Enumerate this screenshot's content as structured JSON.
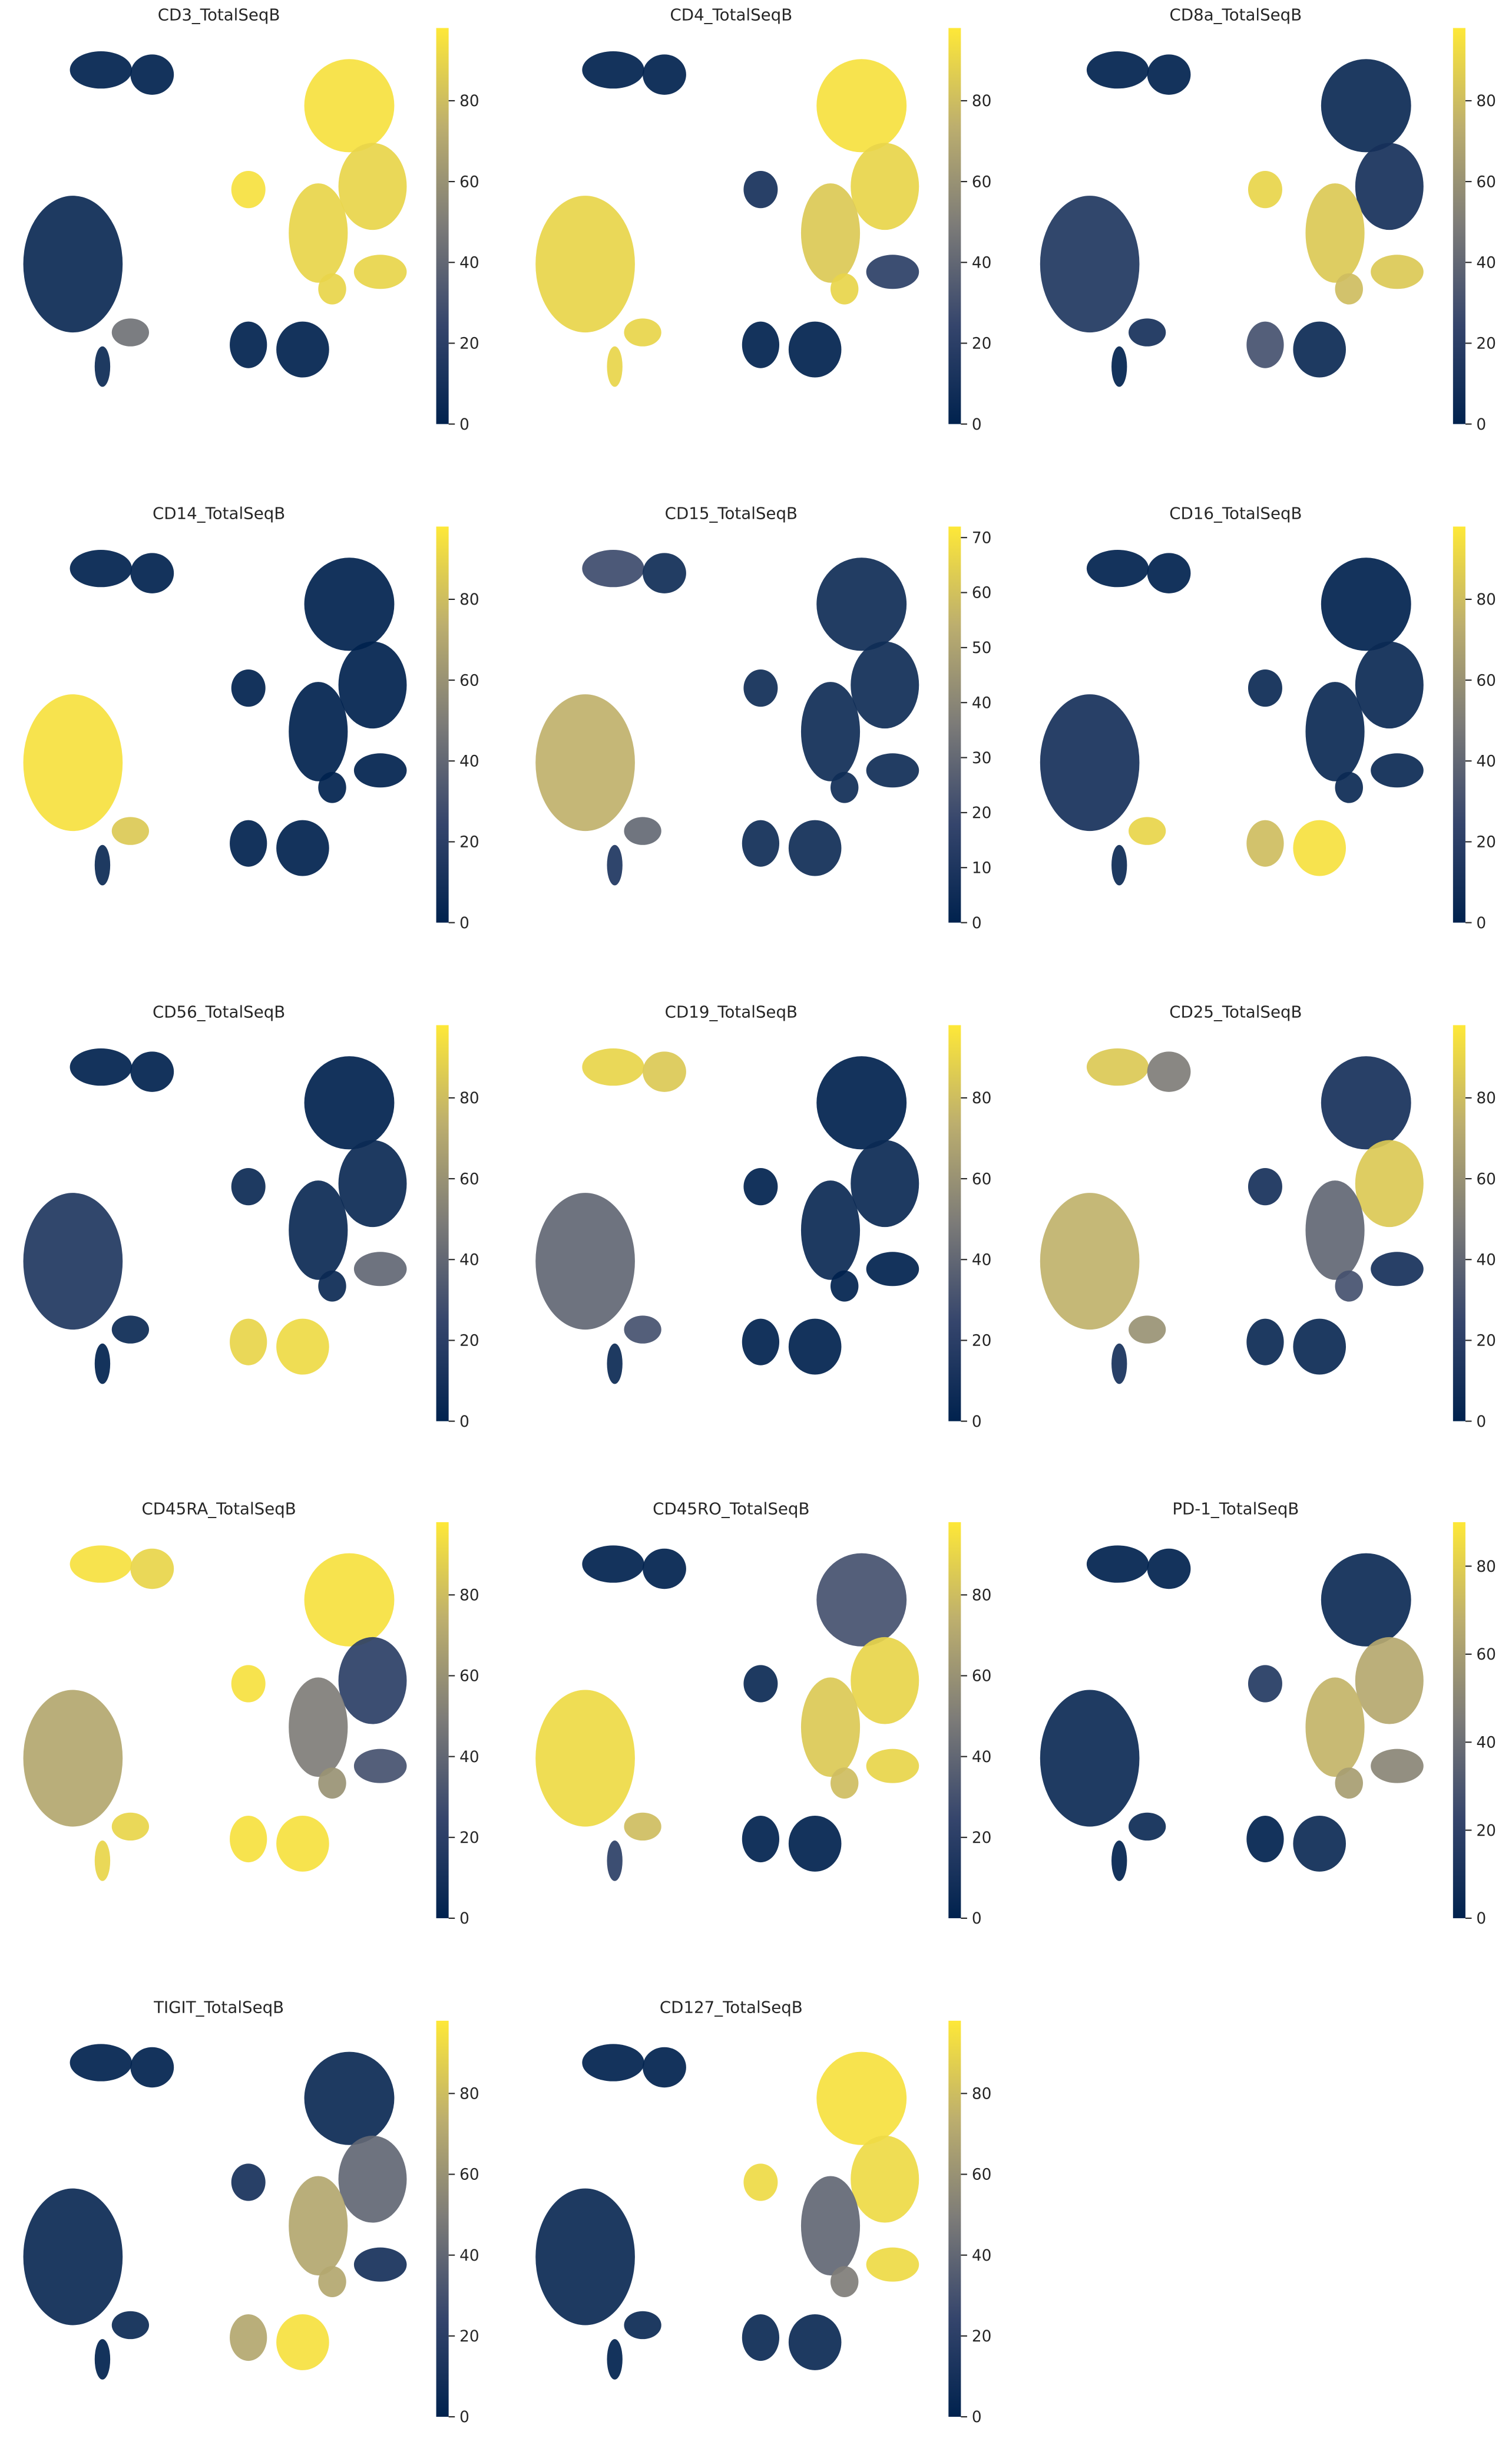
{
  "chart_data": [
    {
      "type": "scatter",
      "title": "CD3_TotalSeqB",
      "values": [
        0,
        0,
        5,
        45,
        5,
        0,
        0,
        95,
        90,
        90,
        95,
        90,
        90
      ],
      "colormap": "cividis",
      "clim": [
        0,
        98
      ],
      "cticks": [
        0,
        20,
        40,
        60,
        80
      ]
    },
    {
      "type": "scatter",
      "title": "CD4_TotalSeqB",
      "values": [
        0,
        0,
        90,
        90,
        90,
        0,
        0,
        95,
        90,
        85,
        10,
        20,
        90
      ],
      "colormap": "cividis",
      "clim": [
        0,
        98
      ],
      "cticks": [
        0,
        20,
        40,
        60,
        80
      ]
    },
    {
      "type": "scatter",
      "title": "CD8a_TotalSeqB",
      "values": [
        0,
        0,
        15,
        10,
        0,
        30,
        5,
        5,
        10,
        85,
        90,
        85,
        80
      ],
      "colormap": "cividis",
      "clim": [
        0,
        98
      ],
      "cticks": [
        0,
        20,
        40,
        60,
        80
      ]
    },
    {
      "type": "scatter",
      "title": "CD14_TotalSeqB",
      "values": [
        0,
        0,
        95,
        85,
        5,
        0,
        0,
        0,
        0,
        0,
        0,
        0,
        0
      ],
      "colormap": "cividis",
      "clim": [
        0,
        98
      ],
      "cticks": [
        0,
        20,
        40,
        60,
        80
      ]
    },
    {
      "type": "scatter",
      "title": "CD15_TotalSeqB",
      "values": [
        20,
        5,
        55,
        30,
        10,
        5,
        5,
        5,
        5,
        5,
        5,
        5,
        5
      ],
      "colormap": "cividis",
      "clim": [
        0,
        72
      ],
      "cticks": [
        0,
        10,
        20,
        30,
        40,
        50,
        60,
        70
      ]
    },
    {
      "type": "scatter",
      "title": "CD16_TotalSeqB",
      "values": [
        0,
        0,
        10,
        90,
        5,
        80,
        95,
        0,
        5,
        5,
        5,
        5,
        5
      ],
      "colormap": "cividis",
      "clim": [
        0,
        98
      ],
      "cticks": [
        0,
        20,
        40,
        60,
        80
      ]
    },
    {
      "type": "scatter",
      "title": "CD56_TotalSeqB",
      "values": [
        0,
        0,
        15,
        5,
        0,
        90,
        92,
        0,
        5,
        5,
        5,
        40,
        5
      ],
      "colormap": "cividis",
      "clim": [
        0,
        98
      ],
      "cticks": [
        0,
        20,
        40,
        60,
        80
      ]
    },
    {
      "type": "scatter",
      "title": "CD19_TotalSeqB",
      "values": [
        90,
        85,
        40,
        30,
        5,
        0,
        0,
        0,
        5,
        5,
        0,
        0,
        0
      ],
      "colormap": "cividis",
      "clim": [
        0,
        98
      ],
      "cticks": [
        0,
        20,
        40,
        60,
        80
      ]
    },
    {
      "type": "scatter",
      "title": "CD25_TotalSeqB",
      "values": [
        85,
        50,
        75,
        60,
        10,
        5,
        5,
        10,
        85,
        40,
        10,
        10,
        30
      ],
      "colormap": "cividis",
      "clim": [
        0,
        98
      ],
      "cticks": [
        0,
        20,
        40,
        60,
        80
      ]
    },
    {
      "type": "scatter",
      "title": "CD45RA_TotalSeqB",
      "values": [
        95,
        90,
        70,
        90,
        90,
        95,
        95,
        95,
        20,
        50,
        95,
        30,
        60
      ],
      "colormap": "cividis",
      "clim": [
        0,
        98
      ],
      "cticks": [
        0,
        20,
        40,
        60,
        80
      ]
    },
    {
      "type": "scatter",
      "title": "CD45RO_TotalSeqB",
      "values": [
        0,
        0,
        92,
        80,
        20,
        0,
        0,
        30,
        90,
        85,
        5,
        90,
        80
      ],
      "colormap": "cividis",
      "clim": [
        0,
        98
      ],
      "cticks": [
        0,
        20,
        40,
        60,
        80
      ]
    },
    {
      "type": "scatter",
      "title": "PD-1_TotalSeqB",
      "values": [
        0,
        0,
        5,
        5,
        0,
        0,
        5,
        5,
        65,
        70,
        15,
        50,
        60
      ],
      "colormap": "cividis",
      "clim": [
        0,
        90
      ],
      "cticks": [
        0,
        20,
        40,
        60,
        80
      ]
    },
    {
      "type": "scatter",
      "title": "TIGIT_TotalSeqB",
      "values": [
        0,
        0,
        5,
        5,
        0,
        70,
        95,
        5,
        40,
        70,
        10,
        10,
        70
      ],
      "colormap": "cividis",
      "clim": [
        0,
        98
      ],
      "cticks": [
        0,
        20,
        40,
        60,
        80
      ]
    },
    {
      "type": "scatter",
      "title": "CD127_TotalSeqB",
      "values": [
        0,
        0,
        5,
        5,
        0,
        5,
        5,
        95,
        92,
        40,
        92,
        92,
        50
      ],
      "colormap": "cividis",
      "clim": [
        0,
        98
      ],
      "cticks": [
        0,
        20,
        40,
        60,
        80
      ]
    }
  ]
}
